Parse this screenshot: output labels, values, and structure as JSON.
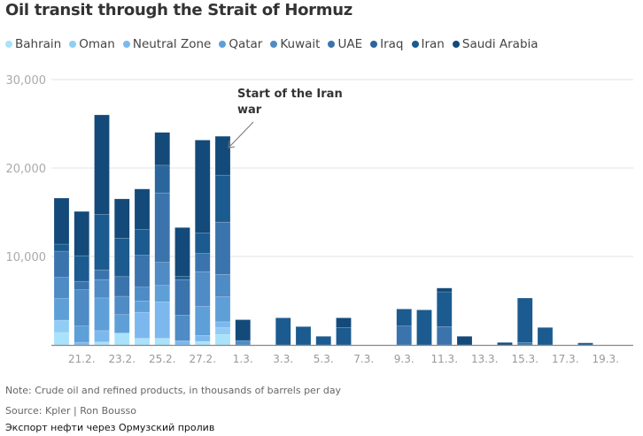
{
  "chart_data": {
    "type": "bar",
    "stacked": true,
    "title": "Oil transit through the Strait of Hormuz",
    "xlabel": "",
    "ylabel": "",
    "ylim": [
      0,
      30000
    ],
    "yticks": [
      "30,000",
      "20,000",
      "10,000"
    ],
    "ytick_values": [
      30000,
      20000,
      10000
    ],
    "grid": true,
    "legend_position": "top",
    "categories": [
      "20.2.",
      "21.2.",
      "22.2.",
      "23.2.",
      "24.2.",
      "25.2.",
      "26.2.",
      "27.2.",
      "28.2.",
      "1.3.",
      "2.3.",
      "3.3.",
      "4.3.",
      "5.3.",
      "6.3.",
      "7.3.",
      "8.3.",
      "9.3.",
      "10.3.",
      "11.3.",
      "12.3.",
      "13.3.",
      "14.3.",
      "15.3.",
      "16.3.",
      "17.3.",
      "18.3.",
      "19.3.",
      "20.3."
    ],
    "xtick_labels": [
      "21.2.",
      "23.2.",
      "25.2.",
      "27.2.",
      "1.3.",
      "3.3.",
      "5.3.",
      "7.3.",
      "9.3.",
      "11.3.",
      "13.3.",
      "15.3.",
      "17.3.",
      "19.3."
    ],
    "series": [
      {
        "name": "Bahrain",
        "color": "#a8e2fb",
        "values": [
          1400,
          0,
          330,
          1340,
          740,
          740,
          0,
          400,
          1170,
          0,
          0,
          0,
          0,
          0,
          0,
          0,
          0,
          0,
          0,
          0,
          0,
          0,
          0,
          0,
          0,
          0,
          0,
          0,
          0
        ]
      },
      {
        "name": "Oman",
        "color": "#90cdf4",
        "values": [
          1400,
          0,
          0,
          0,
          0,
          0,
          0,
          0,
          770,
          0,
          0,
          0,
          0,
          0,
          0,
          0,
          0,
          0,
          0,
          0,
          0,
          0,
          0,
          0,
          0,
          0,
          0,
          0,
          0
        ]
      },
      {
        "name": "Neutral Zone",
        "color": "#7cb8ee",
        "values": [
          0,
          300,
          1280,
          0,
          2950,
          4130,
          470,
          670,
          670,
          0,
          0,
          0,
          0,
          0,
          0,
          0,
          0,
          0,
          0,
          0,
          0,
          0,
          0,
          0,
          0,
          0,
          0,
          0,
          0
        ]
      },
      {
        "name": "Qatar",
        "color": "#5e9fd8",
        "values": [
          2450,
          1850,
          3700,
          2080,
          1280,
          1850,
          0,
          3290,
          2820,
          0,
          0,
          0,
          0,
          0,
          0,
          0,
          0,
          0,
          0,
          0,
          0,
          0,
          0,
          0,
          0,
          0,
          0,
          0,
          0
        ]
      },
      {
        "name": "Kuwait",
        "color": "#4f8bc5",
        "values": [
          2400,
          4100,
          2080,
          2080,
          1580,
          2620,
          2890,
          3930,
          2550,
          500,
          0,
          0,
          0,
          0,
          0,
          0,
          0,
          0,
          0,
          0,
          0,
          0,
          0,
          0,
          0,
          0,
          0,
          0,
          0
        ]
      },
      {
        "name": "UAE",
        "color": "#3b74ad",
        "values": [
          2950,
          940,
          1100,
          2220,
          3590,
          7850,
          4030,
          2050,
          5910,
          0,
          0,
          0,
          0,
          0,
          0,
          0,
          0,
          2130,
          0,
          2070,
          0,
          0,
          0,
          270,
          0,
          0,
          0,
          0,
          0
        ]
      },
      {
        "name": "Iraq",
        "color": "#2a669c",
        "values": [
          0,
          0,
          0,
          0,
          0,
          3120,
          0,
          0,
          0,
          0,
          0,
          0,
          0,
          0,
          0,
          0,
          0,
          0,
          0,
          0,
          0,
          0,
          0,
          0,
          0,
          0,
          0,
          0,
          0
        ]
      },
      {
        "name": "Iran",
        "color": "#1b5b8f",
        "values": [
          800,
          2900,
          6280,
          4360,
          2890,
          0,
          340,
          2320,
          5300,
          0,
          0,
          3060,
          2070,
          970,
          1970,
          0,
          0,
          1930,
          3960,
          3930,
          0,
          0,
          0,
          5030,
          1970,
          0,
          230,
          0,
          0
        ]
      },
      {
        "name": "Saudi Arabia",
        "color": "#134a7a",
        "values": [
          5200,
          5000,
          11240,
          4430,
          4600,
          3720,
          5540,
          10500,
          4400,
          2350,
          0,
          0,
          0,
          0,
          1090,
          0,
          0,
          0,
          0,
          430,
          970,
          0,
          270,
          0,
          0,
          0,
          0,
          0,
          0
        ]
      }
    ],
    "annotation": {
      "text_line1": "Start of the Iran",
      "text_line2": "war",
      "category": "28.2."
    }
  },
  "notes": {
    "note": "Note: Crude oil and refined products, in thousands of barrels per day",
    "source": "Source: Kpler | Ron Bousso",
    "caption": "Экспорт нефти через Ормузский пролив"
  }
}
